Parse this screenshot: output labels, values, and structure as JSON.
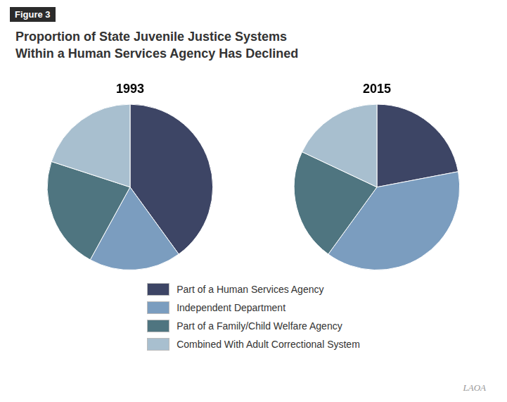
{
  "title": "Proportion of State Juvenile Justice Systems\nWithin a Human Services Agency Has Declined",
  "annotations": [
    "Figure 3",
    "LAOA"
  ],
  "chart_data": [
    {
      "type": "pie",
      "title": "1993",
      "categories": [
        "Part of a Human Services Agency",
        "Independent Department",
        "Part of a Family/Child Welfare Agency",
        "Combined With Adult Correctional System"
      ],
      "values": [
        40,
        18,
        22,
        20
      ],
      "colors": [
        "#3D4565",
        "#7B9DBF",
        "#4F7580",
        "#A8BFCF"
      ],
      "legend": "bottom"
    },
    {
      "type": "pie",
      "title": "2015",
      "categories": [
        "Part of a Human Services Agency",
        "Independent Department",
        "Part of a Family/Child Welfare Agency",
        "Combined With Adult Correctional System"
      ],
      "values": [
        22,
        38,
        22,
        18
      ],
      "colors": [
        "#3D4565",
        "#7B9DBF",
        "#4F7580",
        "#A8BFCF"
      ],
      "legend": "bottom"
    }
  ]
}
